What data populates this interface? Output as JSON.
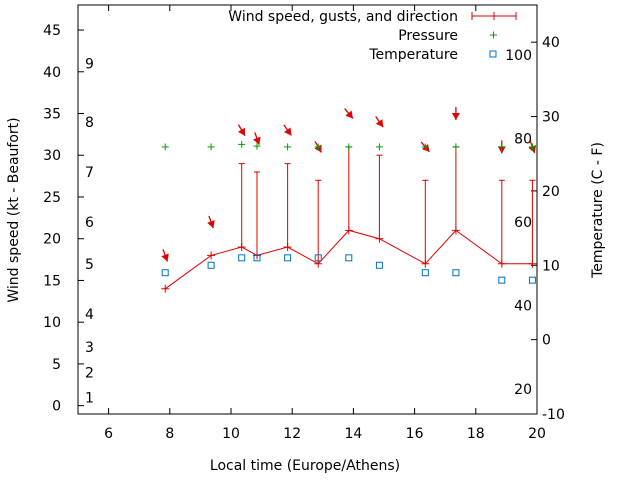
{
  "chart_data": {
    "type": "line",
    "xlabel": "Local time (Europe/Athens)",
    "ylabel": "Wind speed (kt - Beaufort)",
    "y2label": "Temperature (C - F)",
    "xlim": [
      5,
      20
    ],
    "ylim": [
      -1,
      48
    ],
    "y2lim": [
      -10,
      45
    ],
    "x_ticks": [
      "6",
      "8",
      "10",
      "12",
      "14",
      "16",
      "18",
      "20"
    ],
    "y_ticks": [
      "0",
      "5",
      "10",
      "15",
      "20",
      "25",
      "30",
      "35",
      "40",
      "45"
    ],
    "y2_ticks": [
      "-10",
      "0",
      "10",
      "20",
      "30",
      "40"
    ],
    "beaufort_labels": [
      {
        "label": "1",
        "y": 1
      },
      {
        "label": "2",
        "y": 4
      },
      {
        "label": "3",
        "y": 7
      },
      {
        "label": "4",
        "y": 11
      },
      {
        "label": "5",
        "y": 17
      },
      {
        "label": "6",
        "y": 22
      },
      {
        "label": "7",
        "y": 28
      },
      {
        "label": "8",
        "y": 34
      },
      {
        "label": "9",
        "y": 41
      }
    ],
    "fahrenheit_labels": [
      {
        "label": "20",
        "y": 2
      },
      {
        "label": "40",
        "y": 12
      },
      {
        "label": "60",
        "y": 22
      },
      {
        "label": "80",
        "y": 32
      },
      {
        "label": "100",
        "y": 42
      }
    ],
    "legend": {
      "placement": "top-right",
      "wind": "Wind speed, gusts, and direction",
      "pressure": "Pressure",
      "temperature": "Temperature"
    },
    "colors": {
      "wind": "#e00000",
      "pressure": "#00a000",
      "temperature": "#0070c0",
      "arrow": "#e00000",
      "axis": "#000000"
    },
    "wind": {
      "x": [
        7.85,
        9.35,
        10.35,
        10.85,
        11.85,
        12.85,
        13.85,
        14.85,
        16.35,
        17.35,
        18.85,
        19.85
      ],
      "speed": [
        14,
        18,
        19,
        18,
        19,
        17,
        21,
        20,
        17,
        21,
        17,
        17
      ],
      "gust": [
        14,
        18,
        29,
        28,
        29,
        27,
        31,
        30,
        27,
        31,
        27,
        27
      ],
      "direction_deg": [
        340,
        340,
        330,
        340,
        325,
        330,
        320,
        325,
        320,
        0,
        0,
        340
      ],
      "arrow_y": [
        18,
        22,
        33,
        32,
        33,
        31,
        35,
        34,
        31,
        35,
        31,
        31
      ]
    },
    "pressure": {
      "x": [
        7.85,
        9.35,
        10.35,
        10.85,
        11.85,
        12.85,
        13.85,
        14.85,
        16.35,
        17.35,
        18.85,
        19.85
      ],
      "y": [
        31,
        31,
        31.3,
        31.1,
        31,
        31,
        31,
        31,
        31,
        31,
        31,
        31
      ]
    },
    "temperature": {
      "x": [
        7.85,
        9.35,
        10.35,
        10.85,
        11.85,
        12.85,
        13.85,
        14.85,
        16.35,
        17.35,
        18.85,
        19.85
      ],
      "y": [
        9,
        10,
        11,
        11,
        11,
        11,
        11,
        10,
        9,
        9,
        8,
        8
      ]
    }
  }
}
